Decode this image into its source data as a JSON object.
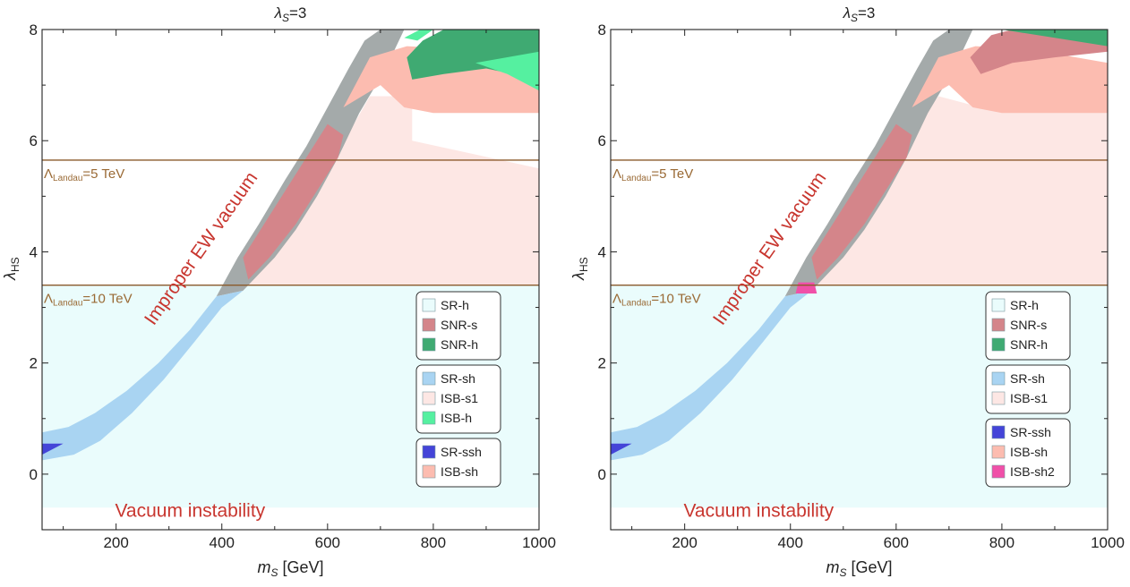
{
  "chart_data": [
    {
      "type": "region",
      "title_symbol": "λ",
      "title_sub": "S",
      "title_value": "=3",
      "xlabel": "m",
      "xlabel_sub": "S",
      "xlabel_unit": " [GeV]",
      "ylabel": "λ",
      "ylabel_sub": "HS",
      "xlim": [
        60,
        1000
      ],
      "ylim": [
        -1,
        8
      ],
      "xticks": [
        200,
        400,
        600,
        800,
        1000
      ],
      "yticks": [
        0,
        2,
        4,
        6,
        8
      ],
      "hlines": [
        {
          "y": 5.65,
          "label_main": "Λ",
          "label_sub": "Landau",
          "label_rest": "=5 TeV",
          "color": "#8b5a2b"
        },
        {
          "y": 3.4,
          "label_main": "Λ",
          "label_sub": "Landau",
          "label_rest": "=10 TeV",
          "color": "#8b5a2b"
        }
      ],
      "annotations": {
        "diagonal": "Improper EW vacuum",
        "bottom": "Vacuum instability"
      },
      "regions": [
        {
          "name": "SR-h",
          "color": "#eafcfc",
          "points": [
            [
              60,
              -0.6
            ],
            [
              1000,
              -0.6
            ],
            [
              1000,
              3.4
            ],
            [
              60,
              3.4
            ]
          ]
        },
        {
          "name": "ISB-s1",
          "color": "#fde7e4",
          "points": [
            [
              420,
              3.4
            ],
            [
              1000,
              3.4
            ],
            [
              1000,
              5.5
            ],
            [
              760,
              6.0
            ],
            [
              760,
              6.8
            ],
            [
              680,
              6.8
            ],
            [
              560,
              4.8
            ],
            [
              480,
              4.2
            ]
          ]
        },
        {
          "name": "improper",
          "color": "#a4aaaa",
          "points": [
            [
              390,
              3.2
            ],
            [
              430,
              3.9
            ],
            [
              470,
              4.5
            ],
            [
              520,
              5.3
            ],
            [
              560,
              5.9
            ],
            [
              600,
              6.6
            ],
            [
              640,
              7.3
            ],
            [
              670,
              7.8
            ],
            [
              700,
              8.0
            ],
            [
              745,
              8.0
            ],
            [
              710,
              7.3
            ],
            [
              660,
              6.5
            ],
            [
              620,
              5.7
            ],
            [
              580,
              5.0
            ],
            [
              540,
              4.4
            ],
            [
              500,
              3.9
            ],
            [
              460,
              3.5
            ],
            [
              440,
              3.3
            ]
          ]
        },
        {
          "name": "SR-sh",
          "color": "#a9d4f2",
          "points": [
            [
              60,
              0.75
            ],
            [
              110,
              0.85
            ],
            [
              160,
              1.1
            ],
            [
              220,
              1.5
            ],
            [
              280,
              2.0
            ],
            [
              340,
              2.6
            ],
            [
              390,
              3.2
            ],
            [
              440,
              3.3
            ],
            [
              400,
              3.0
            ],
            [
              350,
              2.4
            ],
            [
              290,
              1.7
            ],
            [
              230,
              1.1
            ],
            [
              170,
              0.6
            ],
            [
              120,
              0.35
            ],
            [
              60,
              0.25
            ]
          ]
        },
        {
          "name": "SNR-s",
          "color": "#d4858a",
          "points": [
            [
              450,
              3.5
            ],
            [
              490,
              3.9
            ],
            [
              540,
              4.5
            ],
            [
              580,
              5.1
            ],
            [
              620,
              5.7
            ],
            [
              630,
              6.1
            ],
            [
              600,
              6.3
            ],
            [
              560,
              5.7
            ],
            [
              520,
              5.1
            ],
            [
              480,
              4.5
            ],
            [
              440,
              3.9
            ]
          ]
        },
        {
          "name": "ISB-sh",
          "color": "#fcbcb0",
          "points": [
            [
              630,
              6.6
            ],
            [
              680,
              7.5
            ],
            [
              750,
              7.7
            ],
            [
              850,
              7.65
            ],
            [
              1000,
              7.4
            ],
            [
              1000,
              6.5
            ],
            [
              800,
              6.5
            ],
            [
              745,
              6.6
            ],
            [
              700,
              7.0
            ]
          ]
        },
        {
          "name": "SNR-h",
          "color": "#3faa72",
          "points": [
            [
              780,
              7.8
            ],
            [
              820,
              8.0
            ],
            [
              1000,
              8.0
            ],
            [
              1000,
              7.1
            ],
            [
              900,
              7.3
            ],
            [
              820,
              7.2
            ],
            [
              760,
              7.1
            ],
            [
              750,
              7.5
            ]
          ]
        },
        {
          "name": "ISB-h",
          "color": "#55f0a0",
          "points": [
            [
              745,
              7.85
            ],
            [
              775,
              8.0
            ],
            [
              800,
              8.0
            ],
            [
              770,
              7.8
            ]
          ]
        },
        {
          "name": "ISB-h",
          "color": "#55f0a0",
          "points": [
            [
              880,
              7.4
            ],
            [
              1000,
              7.6
            ],
            [
              1000,
              6.9
            ],
            [
              940,
              7.2
            ]
          ]
        },
        {
          "name": "SR-ssh",
          "color": "#4444d8",
          "points": [
            [
              60,
              0.35
            ],
            [
              100,
              0.55
            ],
            [
              60,
              0.55
            ]
          ]
        }
      ],
      "legend_groups": [
        [
          {
            "label": "SR-h",
            "color": "#eafcfc"
          },
          {
            "label": "SNR-s",
            "color": "#d4858a"
          },
          {
            "label": "SNR-h",
            "color": "#3faa72"
          }
        ],
        [
          {
            "label": "SR-sh",
            "color": "#a9d4f2"
          },
          {
            "label": "ISB-s1",
            "color": "#fde7e4"
          },
          {
            "label": "ISB-h",
            "color": "#55f0a0"
          }
        ],
        [
          {
            "label": "SR-ssh",
            "color": "#4444d8"
          },
          {
            "label": "ISB-sh",
            "color": "#fcbcb0"
          }
        ]
      ]
    },
    {
      "type": "region",
      "title_symbol": "λ",
      "title_sub": "S",
      "title_value": "=3",
      "xlabel": "m",
      "xlabel_sub": "S",
      "xlabel_unit": " [GeV]",
      "ylabel": "λ",
      "ylabel_sub": "HS",
      "xlim": [
        60,
        1000
      ],
      "ylim": [
        -1,
        8
      ],
      "xticks": [
        200,
        400,
        600,
        800,
        1000
      ],
      "yticks": [
        0,
        2,
        4,
        6,
        8
      ],
      "hlines": [
        {
          "y": 5.65,
          "label_main": "Λ",
          "label_sub": "Landau",
          "label_rest": "=5 TeV",
          "color": "#8b5a2b"
        },
        {
          "y": 3.4,
          "label_main": "Λ",
          "label_sub": "Landau",
          "label_rest": "=10 TeV",
          "color": "#8b5a2b"
        }
      ],
      "annotations": {
        "diagonal": "Improper EW vacuum",
        "bottom": "Vacuum instability"
      },
      "regions": [
        {
          "name": "SR-h",
          "color": "#eafcfc",
          "points": [
            [
              60,
              -0.6
            ],
            [
              1000,
              -0.6
            ],
            [
              1000,
              3.4
            ],
            [
              60,
              3.4
            ]
          ]
        },
        {
          "name": "ISB-s1",
          "color": "#fde7e4",
          "points": [
            [
              420,
              3.4
            ],
            [
              1000,
              3.4
            ],
            [
              1000,
              6.5
            ],
            [
              760,
              6.6
            ],
            [
              680,
              6.8
            ],
            [
              560,
              5.3
            ],
            [
              480,
              4.3
            ]
          ]
        },
        {
          "name": "improper",
          "color": "#a4aaaa",
          "points": [
            [
              390,
              3.2
            ],
            [
              430,
              3.9
            ],
            [
              470,
              4.5
            ],
            [
              520,
              5.3
            ],
            [
              560,
              5.9
            ],
            [
              600,
              6.6
            ],
            [
              640,
              7.3
            ],
            [
              670,
              7.8
            ],
            [
              700,
              8.0
            ],
            [
              745,
              8.0
            ],
            [
              710,
              7.3
            ],
            [
              660,
              6.5
            ],
            [
              620,
              5.7
            ],
            [
              580,
              5.0
            ],
            [
              540,
              4.4
            ],
            [
              500,
              3.9
            ],
            [
              460,
              3.5
            ],
            [
              440,
              3.3
            ]
          ]
        },
        {
          "name": "SR-sh",
          "color": "#a9d4f2",
          "points": [
            [
              60,
              0.75
            ],
            [
              110,
              0.85
            ],
            [
              160,
              1.1
            ],
            [
              220,
              1.5
            ],
            [
              280,
              2.0
            ],
            [
              340,
              2.6
            ],
            [
              390,
              3.2
            ],
            [
              440,
              3.3
            ],
            [
              400,
              3.0
            ],
            [
              350,
              2.4
            ],
            [
              290,
              1.7
            ],
            [
              230,
              1.1
            ],
            [
              170,
              0.6
            ],
            [
              120,
              0.35
            ],
            [
              60,
              0.25
            ]
          ]
        },
        {
          "name": "SNR-s",
          "color": "#d4858a",
          "points": [
            [
              450,
              3.5
            ],
            [
              490,
              3.9
            ],
            [
              540,
              4.5
            ],
            [
              580,
              5.1
            ],
            [
              620,
              5.7
            ],
            [
              630,
              6.1
            ],
            [
              600,
              6.3
            ],
            [
              560,
              5.7
            ],
            [
              520,
              5.1
            ],
            [
              480,
              4.5
            ],
            [
              440,
              3.9
            ]
          ]
        },
        {
          "name": "ISB-sh",
          "color": "#fcbcb0",
          "points": [
            [
              630,
              6.6
            ],
            [
              680,
              7.5
            ],
            [
              750,
              7.7
            ],
            [
              850,
              7.65
            ],
            [
              1000,
              7.4
            ],
            [
              1000,
              6.5
            ],
            [
              800,
              6.5
            ],
            [
              745,
              6.6
            ],
            [
              700,
              7.0
            ]
          ]
        },
        {
          "name": "SNR-s",
          "color": "#d4858a",
          "points": [
            [
              740,
              7.5
            ],
            [
              780,
              7.9
            ],
            [
              820,
              8.0
            ],
            [
              1000,
              8.0
            ],
            [
              1000,
              7.6
            ],
            [
              900,
              7.5
            ],
            [
              820,
              7.4
            ],
            [
              760,
              7.2
            ]
          ]
        },
        {
          "name": "SNR-h",
          "color": "#3faa72",
          "points": [
            [
              800,
              8.0
            ],
            [
              1000,
              8.0
            ],
            [
              1000,
              7.7
            ],
            [
              900,
              7.85
            ]
          ]
        },
        {
          "name": "ISB-sh2",
          "color": "#f050a8",
          "points": [
            [
              410,
              3.25
            ],
            [
              450,
              3.25
            ],
            [
              445,
              3.45
            ],
            [
              415,
              3.45
            ]
          ]
        },
        {
          "name": "SR-ssh",
          "color": "#4444d8",
          "points": [
            [
              60,
              0.35
            ],
            [
              100,
              0.55
            ],
            [
              60,
              0.55
            ]
          ]
        }
      ],
      "legend_groups": [
        [
          {
            "label": "SR-h",
            "color": "#eafcfc"
          },
          {
            "label": "SNR-s",
            "color": "#d4858a"
          },
          {
            "label": "SNR-h",
            "color": "#3faa72"
          }
        ],
        [
          {
            "label": "SR-sh",
            "color": "#a9d4f2"
          },
          {
            "label": "ISB-s1",
            "color": "#fde7e4"
          }
        ],
        [
          {
            "label": "SR-ssh",
            "color": "#4444d8"
          },
          {
            "label": "ISB-sh",
            "color": "#fcbcb0"
          },
          {
            "label": "ISB-sh2",
            "color": "#f050a8"
          }
        ]
      ]
    }
  ]
}
